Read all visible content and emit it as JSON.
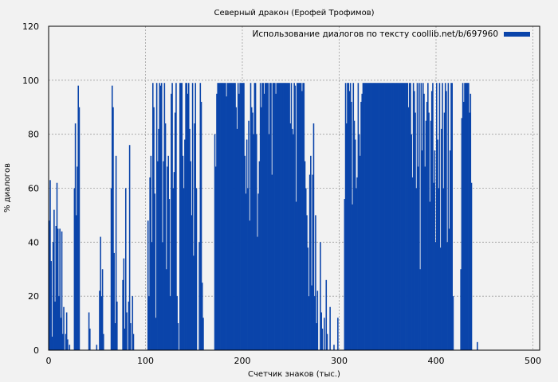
{
  "chart_data": {
    "type": "bar",
    "title": "Северный дракон (Ерофей Трофимов)",
    "xlabel": "Счетчик знаков (тыс.)",
    "ylabel": "% диалогов",
    "xlim": [
      0,
      507
    ],
    "ylim": [
      0,
      120
    ],
    "xticks": [
      0,
      100,
      200,
      300,
      400,
      500
    ],
    "yticks": [
      0,
      20,
      40,
      60,
      80,
      100,
      120
    ],
    "grid": true,
    "legend_position": "top-right",
    "bar_color": "#0a44aa",
    "series": [
      {
        "name": "Использование диалогов по тексту coollib.net/b/697960",
        "x_step": 1,
        "values": [
          48,
          63,
          33,
          5,
          40,
          52,
          18,
          46,
          62,
          45,
          20,
          45,
          12,
          44,
          6,
          16,
          0,
          6,
          14,
          4,
          0,
          2,
          0,
          0,
          0,
          0,
          60,
          84,
          50,
          68,
          98,
          90,
          0,
          0,
          0,
          0,
          0,
          0,
          0,
          0,
          0,
          14,
          8,
          0,
          0,
          0,
          0,
          0,
          0,
          2,
          0,
          0,
          22,
          42,
          20,
          30,
          6,
          0,
          0,
          0,
          0,
          0,
          0,
          0,
          60,
          98,
          90,
          36,
          10,
          72,
          18,
          0,
          0,
          0,
          0,
          0,
          26,
          34,
          8,
          60,
          14,
          0,
          18,
          76,
          10,
          0,
          20,
          6,
          0,
          0,
          0,
          0,
          0,
          0,
          0,
          0,
          0,
          0,
          0,
          0,
          0,
          0,
          48,
          20,
          64,
          72,
          40,
          99,
          90,
          58,
          12,
          99,
          70,
          82,
          99,
          98,
          99,
          40,
          70,
          99,
          84,
          30,
          68,
          72,
          56,
          20,
          95,
          99,
          60,
          66,
          88,
          99,
          20,
          10,
          0,
          99,
          99,
          99,
          72,
          60,
          78,
          99,
          99,
          95,
          99,
          82,
          70,
          50,
          99,
          35,
          84,
          99,
          60,
          0,
          0,
          40,
          99,
          92,
          25,
          12,
          0,
          0,
          0,
          0,
          0,
          0,
          0,
          0,
          0,
          0,
          0,
          80,
          68,
          95,
          99,
          99,
          99,
          99,
          99,
          99,
          99,
          99,
          99,
          94,
          99,
          99,
          99,
          99,
          99,
          99,
          99,
          99,
          99,
          90,
          82,
          99,
          95,
          99,
          99,
          99,
          99,
          99,
          72,
          58,
          78,
          60,
          85,
          48,
          99,
          90,
          88,
          80,
          99,
          99,
          80,
          42,
          58,
          70,
          99,
          90,
          99,
          99,
          95,
          99,
          99,
          99,
          99,
          80,
          99,
          99,
          65,
          99,
          99,
          99,
          95,
          99,
          99,
          99,
          99,
          99,
          99,
          99,
          99,
          99,
          99,
          99,
          99,
          99,
          99,
          84,
          99,
          82,
          80,
          99,
          98,
          55,
          99,
          99,
          99,
          99,
          99,
          96,
          99,
          99,
          70,
          60,
          50,
          38,
          20,
          65,
          72,
          24,
          65,
          84,
          20,
          50,
          10,
          22,
          0,
          0,
          40,
          14,
          8,
          0,
          12,
          0,
          26,
          6,
          0,
          0,
          16,
          0,
          0,
          0,
          2,
          0,
          0,
          0,
          12,
          0,
          0,
          0,
          0,
          0,
          0,
          56,
          99,
          84,
          99,
          99,
          96,
          99,
          92,
          54,
          99,
          85,
          78,
          60,
          64,
          99,
          80,
          72,
          92,
          95,
          99,
          99,
          99,
          99,
          99,
          99,
          99,
          99,
          99,
          99,
          99,
          99,
          99,
          99,
          99,
          99,
          99,
          99,
          99,
          99,
          99,
          99,
          99,
          99,
          99,
          99,
          99,
          99,
          99,
          99,
          99,
          99,
          99,
          99,
          99,
          99,
          99,
          99,
          99,
          99,
          99,
          99,
          99,
          99,
          99,
          99,
          99,
          90,
          99,
          99,
          80,
          64,
          99,
          96,
          88,
          60,
          99,
          68,
          99,
          30,
          99,
          74,
          99,
          95,
          68,
          85,
          92,
          99,
          88,
          55,
          85,
          96,
          99,
          62,
          74,
          40,
          99,
          78,
          60,
          99,
          38,
          82,
          99,
          60,
          88,
          99,
          96,
          40,
          99,
          45,
          74,
          99,
          99,
          20,
          0,
          0,
          0,
          0,
          0,
          0,
          0,
          30,
          86,
          99,
          92,
          99,
          99,
          99,
          99,
          99,
          88,
          95,
          62,
          0,
          0,
          0,
          0,
          0,
          3,
          0,
          0,
          0
        ]
      }
    ]
  }
}
